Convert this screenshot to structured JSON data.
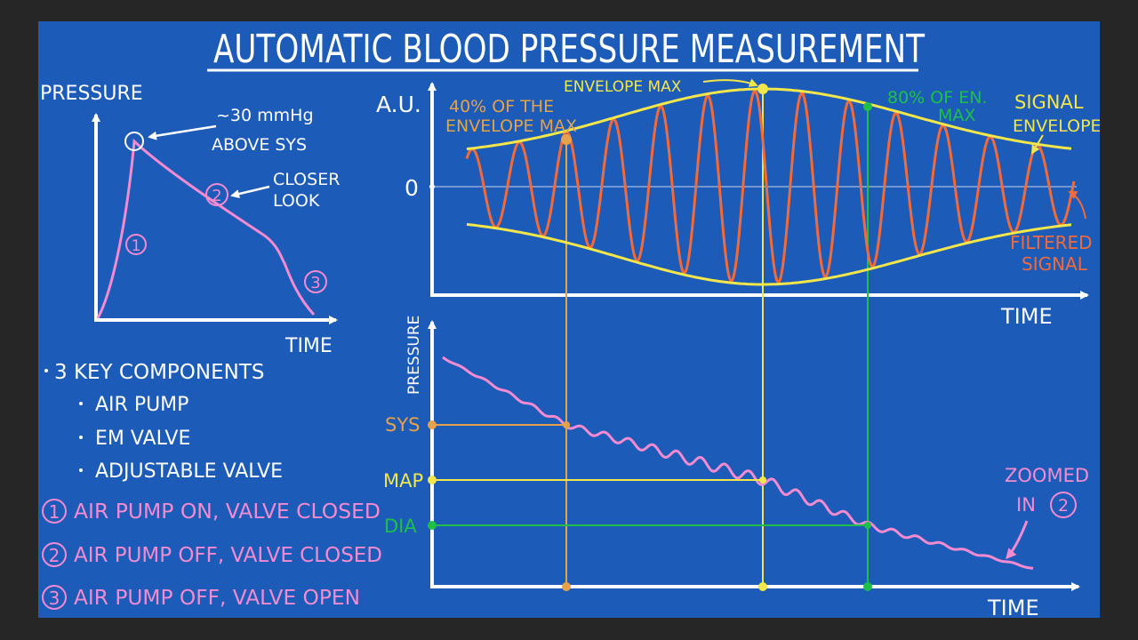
{
  "title": "AUTOMATIC BLOOD PRESSURE MEASUREMENT",
  "colors": {
    "background": "#1c5bb8",
    "frame": "#262626",
    "white": "#ffffff",
    "pink": "#f48ad0",
    "yellow": "#f2e64b",
    "orange_signal": "#f26a3a",
    "orange_label": "#e6a24a",
    "green": "#1fbf4a"
  },
  "left_graph": {
    "y_label": "PRESSURE",
    "x_label": "TIME",
    "peak_note_line1": "~30 mmHg",
    "peak_note_line2": "ABOVE SYS",
    "closer_look_line1": "CLOSER",
    "closer_look_line2": "LOOK",
    "marker_1": "1",
    "marker_2": "2",
    "marker_3": "3"
  },
  "components": {
    "heading": "3 KEY COMPONENTS",
    "items": [
      "AIR PUMP",
      "EM VALVE",
      "ADJUSTABLE VALVE"
    ]
  },
  "phases": [
    {
      "number": "1",
      "text": "AIR PUMP ON, VALVE CLOSED"
    },
    {
      "number": "2",
      "text": "AIR PUMP OFF, VALVE CLOSED"
    },
    {
      "number": "3",
      "text": "AIR PUMP OFF, VALVE OPEN"
    }
  ],
  "top_graph": {
    "y_label": "A.U.",
    "zero_label": "0",
    "x_label": "TIME",
    "envelope_max": "ENVELOPE MAX",
    "pct40_line1": "40% OF THE",
    "pct40_line2": "ENVELOPE MAX",
    "pct80_line1": "80% OF EN.",
    "pct80_line2": "MAX",
    "signal_envelope_line1": "SIGNAL",
    "signal_envelope_line2": "ENVELOPE",
    "filtered_line1": "FILTERED",
    "filtered_line2": "SIGNAL"
  },
  "bottom_graph": {
    "y_label": "PRESSURE",
    "x_label": "TIME",
    "sys_label": "SYS",
    "map_label": "MAP",
    "dia_label": "DIA",
    "zoom_line1": "ZOOMED",
    "zoom_line2": "IN",
    "zoom_marker": "2"
  }
}
